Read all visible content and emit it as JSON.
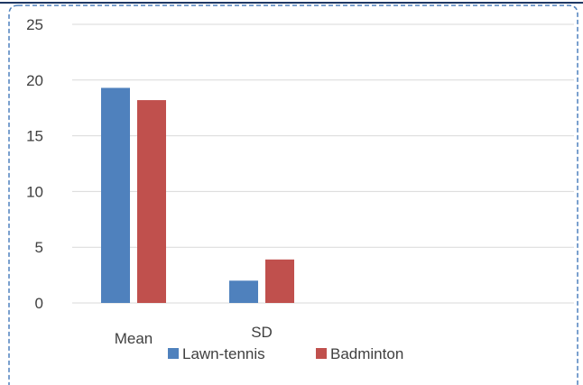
{
  "chart_data": {
    "type": "bar",
    "categories": [
      "Mean",
      "SD"
    ],
    "series": [
      {
        "name": "Lawn-tennis",
        "values": [
          19.3,
          2.0
        ],
        "color": "#4f81bd"
      },
      {
        "name": "Badminton",
        "values": [
          18.2,
          3.9
        ],
        "color": "#c0504d"
      }
    ],
    "yticks": [
      0,
      5,
      10,
      15,
      20,
      25
    ],
    "ylim": [
      0,
      25
    ],
    "grid": true,
    "legend": "bottom",
    "frame_color": "#4f81bd",
    "grid_color": "#d9d9d9"
  }
}
